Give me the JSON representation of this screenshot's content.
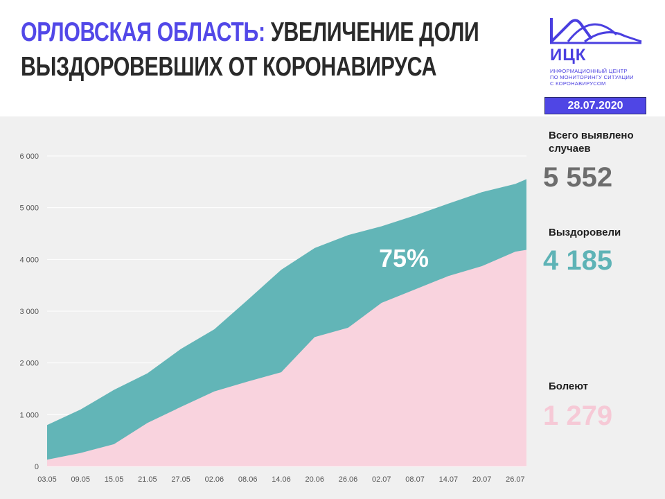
{
  "header": {
    "title_region": "Орловская область:",
    "title_rest_line1": "увеличение доли",
    "title_line2": "выздоровевших от коронавируса",
    "date": "28.07.2020"
  },
  "logo": {
    "name": "ИЦК",
    "subtitle_lines": [
      "ИНФОРМАЦИОННЫЙ ЦЕНТР",
      "ПО МОНИТОРИНГУ СИТУАЦИИ",
      "С КОРОНАВИРУСОМ"
    ]
  },
  "stats": {
    "total": {
      "label": "Всего выявлено случаев",
      "value": "5 552",
      "color": "#6d6d6d"
    },
    "recovered": {
      "label": "Выздоровели",
      "value": "4 185",
      "color": "#5eb3b6"
    },
    "sick": {
      "label": "Болеют",
      "value": "1 279",
      "color": "#f6c9d6"
    }
  },
  "colors": {
    "accent": "#5248e8",
    "teal": "#62b5b7",
    "pink": "#f9d3de"
  },
  "chart_data": {
    "type": "area",
    "annotation": "75%",
    "x_tick_labels": [
      "03.05",
      "09.05",
      "15.05",
      "21.05",
      "27.05",
      "02.06",
      "08.06",
      "14.06",
      "20.06",
      "26.06",
      "02.07",
      "08.07",
      "14.07",
      "20.07",
      "26.07"
    ],
    "y_tick_labels": [
      "0",
      "1 000",
      "2 000",
      "3 000",
      "4 000",
      "5 000",
      "6 000"
    ],
    "ylim": [
      0,
      6000
    ],
    "grid": true,
    "series": [
      {
        "name": "Выздоровели",
        "color": "#62b5b7",
        "dates": [
          "03.05",
          "09.05",
          "15.05",
          "21.05",
          "27.05",
          "02.06",
          "08.06",
          "14.06",
          "20.06",
          "26.06",
          "02.07",
          "08.07",
          "14.07",
          "20.07",
          "26.07",
          "28.07"
        ],
        "values": [
          130,
          260,
          430,
          840,
          1150,
          1450,
          1640,
          1820,
          2500,
          2680,
          3160,
          3420,
          3680,
          3870,
          4150,
          4185
        ]
      },
      {
        "name": "Всего выявлено случаев",
        "color": "#62b5b7",
        "dates": [
          "03.05",
          "09.05",
          "15.05",
          "21.05",
          "27.05",
          "02.06",
          "08.06",
          "14.06",
          "20.06",
          "26.06",
          "02.07",
          "08.07",
          "14.07",
          "20.07",
          "26.07",
          "28.07"
        ],
        "values": [
          800,
          1100,
          1480,
          1800,
          2270,
          2650,
          3220,
          3800,
          4220,
          4470,
          4640,
          4850,
          5080,
          5300,
          5460,
          5552
        ]
      }
    ]
  }
}
